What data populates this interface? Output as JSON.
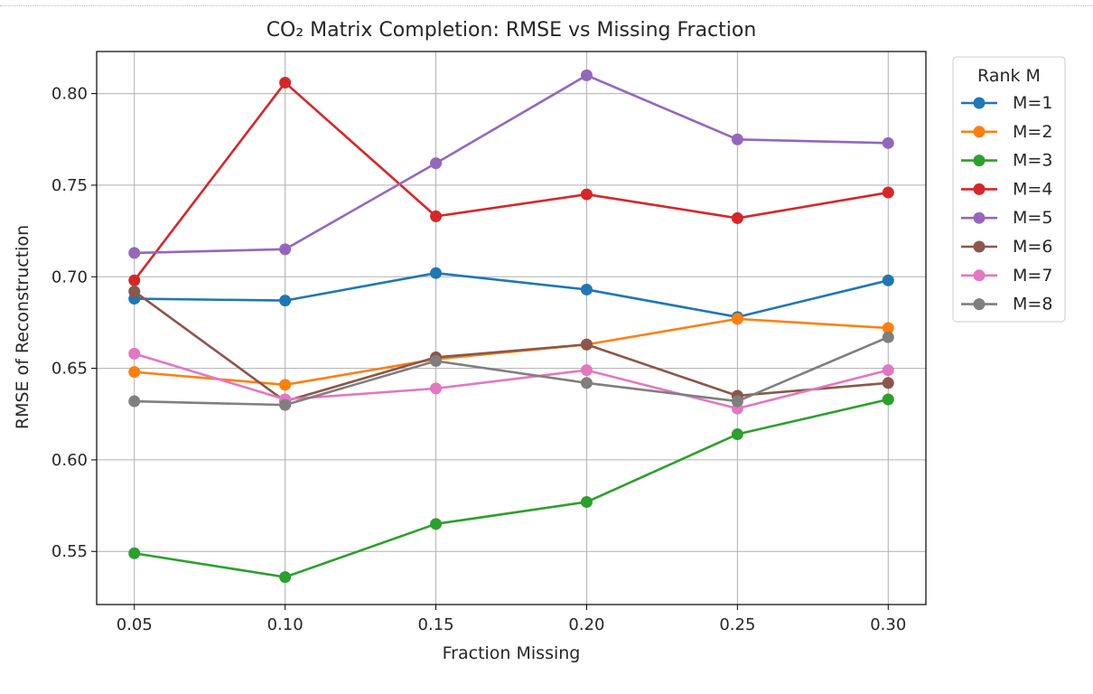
{
  "chart_data": {
    "type": "line",
    "title": "CO₂ Matrix Completion: RMSE vs Missing Fraction",
    "xlabel": "Fraction Missing",
    "ylabel": "RMSE of Reconstruction",
    "x": [
      0.05,
      0.1,
      0.15,
      0.2,
      0.25,
      0.3
    ],
    "x_tick_labels": [
      "0.05",
      "0.10",
      "0.15",
      "0.20",
      "0.25",
      "0.30"
    ],
    "y_ticks": [
      0.55,
      0.6,
      0.65,
      0.7,
      0.75,
      0.8
    ],
    "y_tick_labels": [
      "0.55",
      "0.60",
      "0.65",
      "0.70",
      "0.75",
      "0.80"
    ],
    "xlim": [
      0.0375,
      0.3125
    ],
    "ylim": [
      0.521,
      0.823
    ],
    "grid": true,
    "legend": {
      "title": "Rank M",
      "placement": "outside-right-top"
    },
    "series": [
      {
        "name": "M=1",
        "color": "#1f77b4",
        "values": [
          0.688,
          0.687,
          0.702,
          0.693,
          0.678,
          0.698
        ]
      },
      {
        "name": "M=2",
        "color": "#ff7f0e",
        "values": [
          0.648,
          0.641,
          0.655,
          0.663,
          0.677,
          0.672
        ]
      },
      {
        "name": "M=3",
        "color": "#2ca02c",
        "values": [
          0.549,
          0.536,
          0.565,
          0.577,
          0.614,
          0.633
        ]
      },
      {
        "name": "M=4",
        "color": "#d62728",
        "values": [
          0.698,
          0.806,
          0.733,
          0.745,
          0.732,
          0.746
        ]
      },
      {
        "name": "M=5",
        "color": "#9467bd",
        "values": [
          0.713,
          0.715,
          0.762,
          0.81,
          0.775,
          0.773
        ]
      },
      {
        "name": "M=6",
        "color": "#8c564b",
        "values": [
          0.692,
          0.632,
          0.656,
          0.663,
          0.635,
          0.642
        ]
      },
      {
        "name": "M=7",
        "color": "#e377c2",
        "values": [
          0.658,
          0.633,
          0.639,
          0.649,
          0.628,
          0.649
        ]
      },
      {
        "name": "M=8",
        "color": "#7f7f7f",
        "values": [
          0.632,
          0.63,
          0.654,
          0.642,
          0.632,
          0.667
        ]
      }
    ]
  }
}
